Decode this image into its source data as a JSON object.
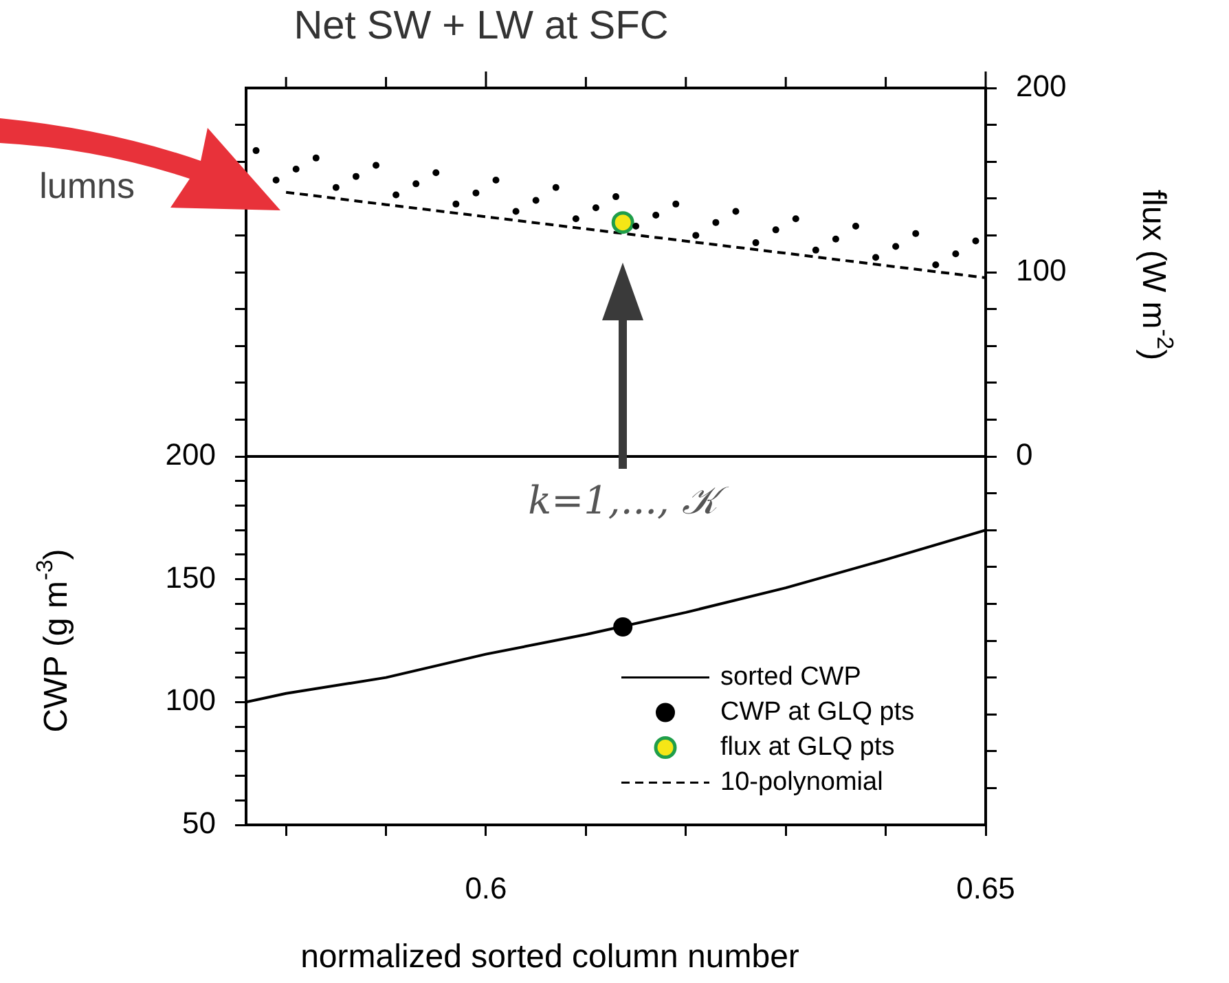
{
  "chart_data": {
    "type": "line",
    "title": "Net SW + LW at SFC",
    "xlabel": "normalized sorted column number",
    "ylabel": "CWP (g m$^{-3}$)",
    "y2label": "flux (W m$^{-2}$)",
    "annotations": [
      "lumns",
      "k=1,..., 𝒦"
    ],
    "xlim": [
      0.576,
      0.65
    ],
    "xticks": [
      {
        "value": 0.58,
        "label": null
      },
      {
        "value": 0.59,
        "label": null
      },
      0.6,
      {
        "value": 0.61,
        "label": null
      },
      {
        "value": 0.62,
        "label": null
      },
      {
        "value": 0.63,
        "label": null
      },
      {
        "value": 0.64,
        "label": null
      },
      0.65
    ],
    "ylim": [
      50,
      350
    ],
    "yticks": [
      50,
      {
        "value": 60,
        "label": null
      },
      {
        "value": 70,
        "label": null
      },
      {
        "value": 80,
        "label": null
      },
      {
        "value": 90,
        "label": null
      },
      100,
      {
        "value": 110,
        "label": null
      },
      {
        "value": 120,
        "label": null
      },
      {
        "value": 130,
        "label": null
      },
      {
        "value": 140,
        "label": null
      },
      150,
      {
        "value": 160,
        "label": null
      },
      {
        "value": 170,
        "label": null
      },
      {
        "value": 180,
        "label": null
      },
      {
        "value": 190,
        "label": null
      },
      200,
      {
        "value": 215,
        "label": null
      },
      {
        "value": 230,
        "label": null
      },
      {
        "value": 245,
        "label": null
      },
      {
        "value": 260,
        "label": null
      },
      {
        "value": 275,
        "label": null
      },
      {
        "value": 290,
        "label": null
      },
      {
        "value": 305,
        "label": null
      },
      {
        "value": 320,
        "label": null
      },
      {
        "value": 335,
        "label": null
      }
    ],
    "y2lim": [
      -200,
      200
    ],
    "y2ticks": [
      {
        "value": -180,
        "label": null
      },
      {
        "value": -160,
        "label": null
      },
      {
        "value": -140,
        "label": null
      },
      {
        "value": -120,
        "label": null
      },
      {
        "value": -100,
        "label": null
      },
      {
        "value": -80,
        "label": null
      },
      {
        "value": -60,
        "label": null
      },
      {
        "value": -40,
        "label": null
      },
      {
        "value": -20,
        "label": null
      },
      0,
      {
        "value": 20,
        "label": null
      },
      {
        "value": 40,
        "label": null
      },
      {
        "value": 60,
        "label": null
      },
      {
        "value": 80,
        "label": null
      },
      100,
      {
        "value": 120,
        "label": null
      },
      {
        "value": 140,
        "label": null
      },
      {
        "value": 160,
        "label": null
      },
      {
        "value": 180,
        "label": null
      },
      200
    ],
    "ref_lines": [
      {
        "axis": "y2",
        "value": 0,
        "color": "#000000"
      }
    ],
    "legend": "bottom right",
    "series": [
      {
        "type": "scatter",
        "axis": "y2",
        "color": "#000000",
        "marker": "circle",
        "x": [
          0.577,
          0.579,
          0.581,
          0.583,
          0.585,
          0.587,
          0.589,
          0.591,
          0.593,
          0.595,
          0.597,
          0.599,
          0.601,
          0.603,
          0.605,
          0.607,
          0.609,
          0.611,
          0.613,
          0.615,
          0.617,
          0.619,
          0.621,
          0.623,
          0.625,
          0.627,
          0.629,
          0.631,
          0.633,
          0.635,
          0.637,
          0.639,
          0.641,
          0.643,
          0.645,
          0.647,
          0.649
        ],
        "values": [
          166,
          150,
          156,
          162,
          146,
          152,
          158,
          142,
          148,
          154,
          137,
          143,
          150,
          133,
          139,
          146,
          129,
          135,
          141,
          125,
          131,
          137,
          120,
          127,
          133,
          116,
          123,
          129,
          112,
          118,
          125,
          108,
          114,
          121,
          104,
          110,
          117
        ]
      },
      {
        "name": "sorted CWP",
        "type": "line",
        "axis": "y",
        "color": "#000000",
        "marker": "none",
        "line_style": "solid",
        "x": [
          0.576,
          0.58,
          0.59,
          0.6,
          0.61,
          0.62,
          0.63,
          0.64,
          0.65
        ],
        "values": [
          100,
          103.5,
          110,
          119.5,
          127.5,
          136.5,
          146.5,
          158,
          170
        ]
      },
      {
        "name": "CWP at GLQ pts",
        "type": "scatter",
        "axis": "y",
        "color": "#000000",
        "marker": "circle",
        "x": [
          0.6137
        ],
        "values": [
          130.6
        ]
      },
      {
        "name": "flux at GLQ pts",
        "type": "scatter",
        "axis": "y2",
        "color": "#f5e616",
        "marker": "circle",
        "x": [
          0.6137
        ],
        "values": [
          127
        ]
      },
      {
        "name": "10-polynomial",
        "type": "line",
        "axis": "y2",
        "color": "#000000",
        "marker": "none",
        "line_style": "dashed",
        "x": [
          0.58,
          0.59,
          0.6,
          0.61,
          0.62,
          0.63,
          0.64,
          0.65
        ],
        "values": [
          143.4,
          136.7,
          130.1,
          123.5,
          116.9,
          110.3,
          103.6,
          97
        ]
      }
    ]
  }
}
